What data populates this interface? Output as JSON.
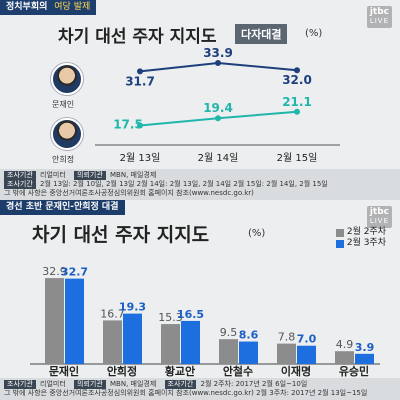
{
  "top": {
    "segment": {
      "brand": "정치부회의",
      "sub": "여당 발제"
    },
    "channel": {
      "name": "jtbc",
      "live": "LIVE"
    },
    "title": "차기 대선 주자 지지도",
    "badge": "다자대결",
    "unit": "(%)",
    "candidates": [
      "문재인",
      "안희정"
    ],
    "source_lines": [
      {
        "tags": [
          "조사기관"
        ],
        "text": "리얼미터",
        "tags2": [
          "의뢰기관"
        ],
        "text2": "MBN, 매일경제"
      },
      {
        "tags": [
          "조사기간"
        ],
        "text": "2월 13일: 2월 10일, 2월 13일        2월 14일: 2월 13일, 2월 14일        2월 15일: 2월 14일, 2월 15일"
      },
      {
        "tags": [],
        "text": "그 밖에 사항은 중앙선거여론조사공정심의위원회 홈페이지 참조(www.nesdc.go.kr)"
      }
    ],
    "colors": {
      "moon": "#1d3f7c",
      "ahn": "#21b6ab"
    }
  },
  "bottom": {
    "segment": {
      "brand": "경선 초반 문재인-안희정 대결",
      "sub": ""
    },
    "channel": {
      "name": "jtbc",
      "live": "LIVE"
    },
    "title": "차기 대선 주자 지지도",
    "unit": "(%)",
    "legend": [
      "2월 2주차",
      "2월 3주차"
    ],
    "source_lines": [
      {
        "tags": [
          "조사기관"
        ],
        "text": "리얼미터",
        "tags2": [
          "의뢰기관"
        ],
        "text2": "MBN, 매일경제",
        "tags3": [
          "조사기간"
        ],
        "text3": "2월 2주차: 2017년 2월 6일~10일"
      },
      {
        "tags": [],
        "text": "그 밖에 사항은 중앙선거여론조사공정심의위원회 홈페이지 참조(www.nesdc.go.kr)          2월 3주차: 2017년 2월 13일~15일"
      }
    ],
    "colors": {
      "week2": "#8c8c8c",
      "week3": "#1d6fe0"
    }
  },
  "chart_data": [
    {
      "type": "line",
      "title": "차기 대선 주자 지지도",
      "x": [
        "2월 13일",
        "2월 14일",
        "2월 15일"
      ],
      "series": [
        {
          "name": "문재인",
          "values": [
            31.7,
            33.9,
            32.0
          ]
        },
        {
          "name": "안희정",
          "values": [
            17.5,
            19.4,
            21.1
          ]
        }
      ],
      "ylim": [
        15,
        36
      ],
      "grid": false
    },
    {
      "type": "bar",
      "title": "차기 대선 주자 지지도",
      "categories": [
        "문재인",
        "안희정",
        "황교안",
        "안철수",
        "이재명",
        "유승민"
      ],
      "series": [
        {
          "name": "2월 2주차",
          "values": [
            32.9,
            16.7,
            15.3,
            9.5,
            7.8,
            4.9
          ]
        },
        {
          "name": "2월 3주차",
          "values": [
            32.7,
            19.3,
            16.5,
            8.6,
            7.0,
            3.9
          ]
        }
      ],
      "ylim": [
        0,
        36
      ],
      "legend": "top-right",
      "grid": false
    }
  ]
}
